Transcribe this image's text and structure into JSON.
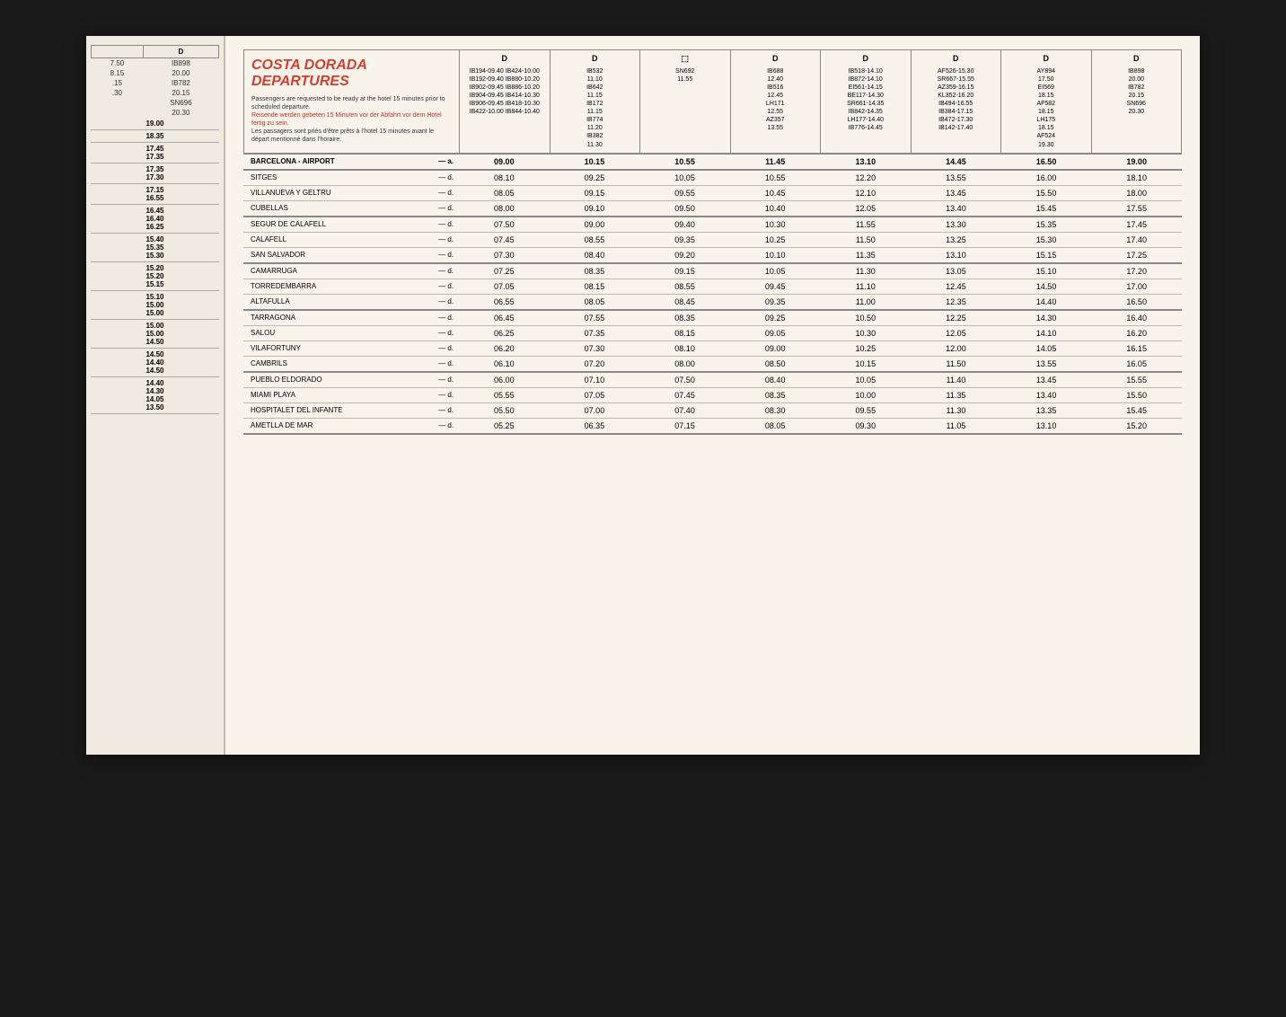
{
  "title": "COSTA DORADA DEPARTURES",
  "instructions": {
    "line1": "Passengers are requested to be ready at the hotel 15 minutes prior to scheduled departure.",
    "line2_red": "Reisende werden gebeten 15 Minuten vor der Abfahrt vor dem Hotel fertig zu sein.",
    "line3": "Les passagers sont priés d'être prêts à l'hotel 15 minutes avant le départ mentionné dans l'horaire."
  },
  "left_page": {
    "header_d": "D",
    "col1": [
      "7.50",
      "8.15",
      ".15",
      ".30"
    ],
    "col2_flights": [
      "IB898",
      "20.00",
      "IB782",
      "20.15",
      "SN696",
      "20.30"
    ],
    "time_rows": [
      [
        "19.00"
      ],
      [
        "18.35"
      ],
      [
        "17.45",
        "17.35"
      ],
      [
        "17.35",
        "17.30"
      ],
      [
        "17.15",
        "16.55"
      ],
      [
        "16.45",
        "16.40",
        "16.25"
      ],
      [
        "15.40",
        "15.35",
        "15.30"
      ],
      [
        "15.20",
        "15.20",
        "15.15"
      ],
      [
        "15.10",
        "15.00",
        "15.00"
      ],
      [
        "15.00",
        "15.00",
        "14.50"
      ],
      [
        "14.50",
        "14.40",
        "14.50"
      ],
      [
        "14.40",
        "14.30",
        "14.05",
        "13.50"
      ]
    ]
  },
  "flight_columns": [
    {
      "marker": "D",
      "lines": [
        "IB194-09.40  IB424-10.00",
        "IB192-09.40  IB880-10.20",
        "IB902-09.45  IB886-10.20",
        "IB904-09.45  IB414-10.30",
        "IB906-09.45  IB418-10.30",
        "IB422-10.00  IB844-10.40"
      ]
    },
    {
      "marker": "D",
      "lines": [
        "IB532",
        "11.10",
        "IB642",
        "11.15",
        "IB172",
        "11.15",
        "IB774",
        "11.20",
        "IB382",
        "11.30"
      ]
    },
    {
      "marker": "⬚",
      "lines": [
        "SN692",
        "11.55"
      ]
    },
    {
      "marker": "D",
      "lines": [
        "IB688",
        "12.40",
        "IB516",
        "12.45",
        "LH171",
        "12.55",
        "AZ357",
        "13.55"
      ]
    },
    {
      "marker": "D",
      "lines": [
        "IB518-14.10",
        "IB872-14.10",
        "EI561-14.15",
        "BE117-14.30",
        "SR661-14.35",
        "IB842-14.35",
        "LH177-14.40",
        "IB776-14.45"
      ]
    },
    {
      "marker": "D",
      "lines": [
        "AF526-15.30",
        "SR667-15.55",
        "AZ359-16.15",
        "KL352-16.20",
        "IB494-16.55",
        "IB384-17.15",
        "IB472-17.30",
        "IB142-17.40"
      ]
    },
    {
      "marker": "D",
      "lines": [
        "AY894",
        "17.50",
        "EI569",
        "18.15",
        "AF582",
        "18.15",
        "LH175",
        "18.15",
        "AF524",
        "19.30"
      ]
    },
    {
      "marker": "D",
      "lines": [
        "IB898",
        "20.00",
        "IB782",
        "20.15",
        "SN696",
        "20.30"
      ]
    }
  ],
  "airport_row": {
    "name": "BARCELONA - AIRPORT",
    "marker": "— a.",
    "times": [
      "09.00",
      "10.15",
      "10.55",
      "11.45",
      "13.10",
      "14.45",
      "16.50",
      "19.00"
    ]
  },
  "station_groups": [
    {
      "stations": [
        {
          "name": "SITGES",
          "marker": "— d.",
          "times": [
            "08.10",
            "09.25",
            "10.05",
            "10.55",
            "12.20",
            "13.55",
            "16.00",
            "18.10"
          ]
        },
        {
          "name": "VILLANUEVA Y GELTRU",
          "marker": "— d.",
          "times": [
            "08.05",
            "09.15",
            "09.55",
            "10.45",
            "12.10",
            "13.45",
            "15.50",
            "18.00"
          ]
        },
        {
          "name": "CUBELLAS",
          "marker": "— d.",
          "times": [
            "08.00",
            "09.10",
            "09.50",
            "10.40",
            "12.05",
            "13.40",
            "15.45",
            "17.55"
          ]
        }
      ]
    },
    {
      "stations": [
        {
          "name": "SEGUR DE CALAFELL",
          "marker": "— d.",
          "times": [
            "07.50",
            "09.00",
            "09.40",
            "10.30",
            "11.55",
            "13.30",
            "15.35",
            "17.45"
          ]
        },
        {
          "name": "CALAFELL",
          "marker": "— d.",
          "times": [
            "07.45",
            "08.55",
            "09.35",
            "10.25",
            "11.50",
            "13.25",
            "15.30",
            "17.40"
          ]
        },
        {
          "name": "SAN SALVADOR",
          "marker": "— d.",
          "times": [
            "07.30",
            "08.40",
            "09.20",
            "10.10",
            "11.35",
            "13.10",
            "15.15",
            "17.25"
          ]
        }
      ]
    },
    {
      "stations": [
        {
          "name": "CAMARRUGA",
          "marker": "— d.",
          "times": [
            "07.25",
            "08.35",
            "09.15",
            "10.05",
            "11.30",
            "13.05",
            "15.10",
            "17.20"
          ]
        },
        {
          "name": "TORREDEMBARRA",
          "marker": "— d.",
          "times": [
            "07.05",
            "08.15",
            "08.55",
            "09.45",
            "11.10",
            "12.45",
            "14.50",
            "17.00"
          ]
        },
        {
          "name": "ALTAFULLA",
          "marker": "— d.",
          "times": [
            "06.55",
            "08.05",
            "08.45",
            "09.35",
            "11.00",
            "12.35",
            "14.40",
            "16.50"
          ]
        }
      ]
    },
    {
      "stations": [
        {
          "name": "TARRAGONA",
          "marker": "— d.",
          "times": [
            "06.45",
            "07.55",
            "08.35",
            "09.25",
            "10.50",
            "12.25",
            "14.30",
            "16.40"
          ]
        },
        {
          "name": "SALOU",
          "marker": "— d.",
          "times": [
            "06.25",
            "07.35",
            "08.15",
            "09.05",
            "10.30",
            "12.05",
            "14.10",
            "16.20"
          ]
        },
        {
          "name": "VILAFORTUNY",
          "marker": "— d.",
          "times": [
            "06.20",
            "07.30",
            "08.10",
            "09.00",
            "10.25",
            "12.00",
            "14.05",
            "16.15"
          ]
        },
        {
          "name": "CAMBRILS",
          "marker": "— d.",
          "times": [
            "06.10",
            "07.20",
            "08.00",
            "08.50",
            "10.15",
            "11.50",
            "13.55",
            "16.05"
          ]
        }
      ]
    },
    {
      "stations": [
        {
          "name": "PUEBLO ELDORADO",
          "marker": "— d.",
          "times": [
            "06.00",
            "07.10",
            "07.50",
            "08.40",
            "10.05",
            "11.40",
            "13.45",
            "15.55"
          ]
        },
        {
          "name": "MIAMI PLAYA",
          "marker": "— d.",
          "times": [
            "05.55",
            "07.05",
            "07.45",
            "08.35",
            "10.00",
            "11.35",
            "13.40",
            "15.50"
          ]
        },
        {
          "name": "HOSPITALET DEL INFANTE",
          "marker": "— d.",
          "times": [
            "05.50",
            "07.00",
            "07.40",
            "08.30",
            "09.55",
            "11.30",
            "13.35",
            "15.45"
          ]
        },
        {
          "name": "AMETLLA DE MAR",
          "marker": "— d.",
          "times": [
            "05.25",
            "06.35",
            "07.15",
            "08.05",
            "09.30",
            "11.05",
            "13.10",
            "15.20"
          ]
        }
      ]
    }
  ]
}
